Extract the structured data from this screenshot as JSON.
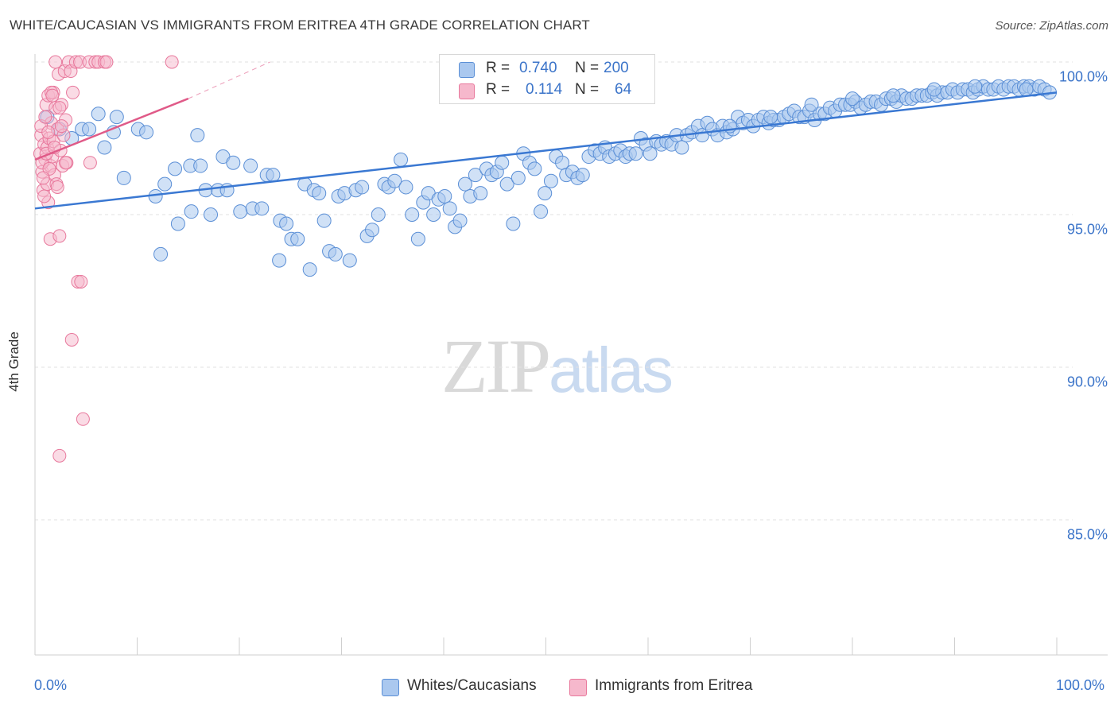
{
  "title": "WHITE/CAUCASIAN VS IMMIGRANTS FROM ERITREA 4TH GRADE CORRELATION CHART",
  "source": "Source: ZipAtlas.com",
  "watermark": {
    "zip": "ZIP",
    "atlas": "atlas"
  },
  "colors": {
    "blue_fill": "#aac8ef",
    "blue_stroke": "#5b8fd6",
    "blue_line": "#3a78d2",
    "pink_fill": "#f6b8cc",
    "pink_stroke": "#e8789c",
    "pink_line": "#e05a88",
    "grid": "#e2e2e2",
    "tick_text": "#3b74c9"
  },
  "legend": {
    "rows": [
      {
        "r_label": "R =",
        "r_value": "0.740",
        "n_label": "N =",
        "n_value": "200"
      },
      {
        "r_label": "R =",
        "r_value": "0.114",
        "n_label": "N =",
        "n_value": "64"
      }
    ]
  },
  "bottom_legend": {
    "blue": "Whites/Caucasians",
    "pink": "Immigrants from Eritrea"
  },
  "chart_data": {
    "type": "scatter",
    "title": "WHITE/CAUCASIAN VS IMMIGRANTS FROM ERITREA 4TH GRADE CORRELATION CHART",
    "xlabel": "",
    "ylabel": "4th Grade",
    "xlim": [
      0,
      100
    ],
    "ylim": [
      80.5,
      101
    ],
    "x_tick_labels": [
      "0.0%",
      "100.0%"
    ],
    "y_ticks": [
      85,
      90,
      95,
      100
    ],
    "y_tick_labels": [
      "85.0%",
      "90.0%",
      "95.0%",
      "100.0%"
    ],
    "grid": true,
    "series": [
      {
        "name": "Whites/Caucasians",
        "r": 0.74,
        "n": 200,
        "trend": {
          "x": [
            0,
            100
          ],
          "y": [
            95.2,
            99.0
          ]
        },
        "points": [
          [
            1.2,
            98.2
          ],
          [
            2.4,
            97.8
          ],
          [
            3.6,
            97.5
          ],
          [
            4.6,
            97.8
          ],
          [
            5.3,
            97.8
          ],
          [
            6.2,
            98.3
          ],
          [
            6.8,
            97.2
          ],
          [
            7.7,
            97.7
          ],
          [
            8.0,
            98.2
          ],
          [
            8.7,
            96.2
          ],
          [
            10.1,
            97.8
          ],
          [
            10.9,
            97.7
          ],
          [
            11.8,
            95.6
          ],
          [
            12.3,
            93.7
          ],
          [
            12.7,
            96.0
          ],
          [
            13.7,
            96.5
          ],
          [
            14.0,
            94.7
          ],
          [
            15.2,
            96.6
          ],
          [
            15.3,
            95.1
          ],
          [
            15.9,
            97.6
          ],
          [
            16.2,
            96.6
          ],
          [
            16.7,
            95.8
          ],
          [
            17.2,
            95.0
          ],
          [
            17.9,
            95.8
          ],
          [
            18.4,
            96.9
          ],
          [
            18.8,
            95.8
          ],
          [
            19.4,
            96.7
          ],
          [
            20.1,
            95.1
          ],
          [
            21.1,
            96.6
          ],
          [
            21.3,
            95.2
          ],
          [
            22.2,
            95.2
          ],
          [
            22.7,
            96.3
          ],
          [
            23.3,
            96.3
          ],
          [
            23.9,
            93.5
          ],
          [
            24.0,
            94.8
          ],
          [
            24.6,
            94.7
          ],
          [
            25.1,
            94.2
          ],
          [
            25.7,
            94.2
          ],
          [
            26.4,
            96.0
          ],
          [
            26.9,
            93.2
          ],
          [
            27.3,
            95.8
          ],
          [
            27.8,
            95.7
          ],
          [
            28.3,
            94.8
          ],
          [
            28.8,
            93.8
          ],
          [
            29.4,
            93.7
          ],
          [
            29.7,
            95.6
          ],
          [
            30.3,
            95.7
          ],
          [
            30.8,
            93.5
          ],
          [
            31.4,
            95.8
          ],
          [
            32.0,
            95.9
          ],
          [
            32.5,
            94.3
          ],
          [
            33.0,
            94.5
          ],
          [
            33.6,
            95.0
          ],
          [
            34.2,
            96.0
          ],
          [
            34.6,
            95.9
          ],
          [
            35.2,
            96.1
          ],
          [
            35.8,
            96.8
          ],
          [
            36.3,
            95.9
          ],
          [
            36.9,
            95.0
          ],
          [
            37.5,
            94.2
          ],
          [
            38.0,
            95.4
          ],
          [
            38.5,
            95.7
          ],
          [
            39.0,
            95.0
          ],
          [
            39.5,
            95.5
          ],
          [
            40.1,
            95.6
          ],
          [
            40.6,
            95.2
          ],
          [
            41.1,
            94.6
          ],
          [
            41.6,
            94.8
          ],
          [
            42.1,
            96.0
          ],
          [
            42.6,
            95.6
          ],
          [
            43.1,
            96.3
          ],
          [
            43.6,
            95.7
          ],
          [
            44.2,
            96.5
          ],
          [
            44.7,
            96.3
          ],
          [
            45.2,
            96.4
          ],
          [
            45.7,
            96.7
          ],
          [
            46.2,
            96.0
          ],
          [
            46.8,
            94.7
          ],
          [
            47.3,
            96.2
          ],
          [
            47.8,
            97.0
          ],
          [
            48.4,
            96.7
          ],
          [
            48.9,
            96.5
          ],
          [
            49.5,
            95.1
          ],
          [
            49.9,
            95.7
          ],
          [
            50.5,
            96.1
          ],
          [
            51.0,
            96.9
          ],
          [
            51.6,
            96.7
          ],
          [
            52.0,
            96.3
          ],
          [
            52.6,
            96.4
          ],
          [
            53.1,
            96.2
          ],
          [
            53.6,
            96.3
          ],
          [
            54.2,
            96.9
          ],
          [
            54.8,
            97.1
          ],
          [
            55.3,
            97.0
          ],
          [
            55.8,
            97.2
          ],
          [
            56.2,
            96.9
          ],
          [
            56.8,
            97.0
          ],
          [
            57.3,
            97.1
          ],
          [
            57.8,
            96.9
          ],
          [
            58.2,
            97.0
          ],
          [
            58.8,
            97.0
          ],
          [
            59.3,
            97.5
          ],
          [
            59.8,
            97.3
          ],
          [
            60.2,
            97.0
          ],
          [
            60.8,
            97.4
          ],
          [
            61.3,
            97.3
          ],
          [
            61.8,
            97.4
          ],
          [
            62.3,
            97.3
          ],
          [
            62.8,
            97.6
          ],
          [
            63.3,
            97.2
          ],
          [
            63.8,
            97.6
          ],
          [
            64.3,
            97.7
          ],
          [
            64.9,
            97.9
          ],
          [
            65.3,
            97.6
          ],
          [
            65.8,
            98.0
          ],
          [
            66.3,
            97.8
          ],
          [
            66.8,
            97.6
          ],
          [
            67.3,
            97.9
          ],
          [
            67.7,
            97.7
          ],
          [
            68.3,
            97.8
          ],
          [
            68.8,
            98.2
          ],
          [
            69.3,
            98.0
          ],
          [
            69.8,
            98.1
          ],
          [
            70.3,
            97.9
          ],
          [
            70.8,
            98.1
          ],
          [
            71.3,
            98.2
          ],
          [
            71.8,
            98.0
          ],
          [
            72.3,
            98.1
          ],
          [
            72.8,
            98.1
          ],
          [
            73.3,
            98.2
          ],
          [
            73.8,
            98.3
          ],
          [
            74.3,
            98.4
          ],
          [
            74.8,
            98.2
          ],
          [
            75.3,
            98.2
          ],
          [
            75.8,
            98.4
          ],
          [
            76.3,
            98.1
          ],
          [
            76.8,
            98.3
          ],
          [
            77.3,
            98.3
          ],
          [
            77.8,
            98.5
          ],
          [
            78.3,
            98.4
          ],
          [
            78.8,
            98.6
          ],
          [
            79.3,
            98.6
          ],
          [
            79.8,
            98.6
          ],
          [
            80.3,
            98.7
          ],
          [
            80.8,
            98.5
          ],
          [
            81.3,
            98.6
          ],
          [
            81.8,
            98.7
          ],
          [
            82.3,
            98.7
          ],
          [
            82.8,
            98.6
          ],
          [
            83.3,
            98.8
          ],
          [
            83.8,
            98.8
          ],
          [
            84.3,
            98.7
          ],
          [
            84.8,
            98.9
          ],
          [
            85.3,
            98.8
          ],
          [
            85.8,
            98.8
          ],
          [
            86.3,
            98.9
          ],
          [
            86.8,
            98.9
          ],
          [
            87.3,
            98.9
          ],
          [
            87.8,
            99.0
          ],
          [
            88.3,
            98.9
          ],
          [
            88.8,
            99.0
          ],
          [
            89.3,
            99.0
          ],
          [
            89.8,
            99.1
          ],
          [
            90.3,
            99.0
          ],
          [
            90.8,
            99.1
          ],
          [
            91.3,
            99.1
          ],
          [
            91.8,
            99.0
          ],
          [
            92.3,
            99.1
          ],
          [
            92.8,
            99.2
          ],
          [
            93.3,
            99.1
          ],
          [
            93.8,
            99.1
          ],
          [
            94.3,
            99.2
          ],
          [
            94.8,
            99.1
          ],
          [
            95.3,
            99.2
          ],
          [
            95.8,
            99.2
          ],
          [
            96.3,
            99.1
          ],
          [
            96.8,
            99.2
          ],
          [
            97.3,
            99.2
          ],
          [
            97.8,
            99.1
          ],
          [
            98.3,
            99.2
          ],
          [
            98.8,
            99.1
          ],
          [
            99.3,
            99.0
          ],
          [
            97.0,
            99.1
          ],
          [
            92.0,
            99.2
          ],
          [
            88.0,
            99.1
          ],
          [
            84.0,
            98.9
          ],
          [
            80.0,
            98.8
          ],
          [
            76.0,
            98.6
          ],
          [
            72.0,
            98.2
          ],
          [
            68.0,
            97.9
          ]
        ]
      },
      {
        "name": "Immigrants from Eritrea",
        "r": 0.114,
        "n": 64,
        "trend": {
          "x": [
            0,
            15
          ],
          "y": [
            96.8,
            98.8
          ]
        },
        "trend_dashed": {
          "x": [
            15,
            23
          ],
          "y": [
            98.8,
            100.0
          ]
        },
        "points": [
          [
            0.5,
            97.0
          ],
          [
            0.6,
            97.6
          ],
          [
            0.7,
            96.4
          ],
          [
            0.8,
            95.8
          ],
          [
            0.9,
            97.3
          ],
          [
            1.0,
            96.8
          ],
          [
            1.1,
            98.6
          ],
          [
            1.2,
            97.2
          ],
          [
            1.2,
            96.0
          ],
          [
            1.3,
            95.4
          ],
          [
            1.3,
            98.9
          ],
          [
            1.4,
            97.5
          ],
          [
            1.5,
            96.6
          ],
          [
            1.5,
            94.2
          ],
          [
            1.6,
            98.0
          ],
          [
            1.7,
            96.9
          ],
          [
            1.8,
            97.4
          ],
          [
            1.8,
            99.0
          ],
          [
            1.9,
            96.3
          ],
          [
            2.0,
            98.5
          ],
          [
            2.0,
            100.0
          ],
          [
            2.1,
            96.0
          ],
          [
            2.2,
            97.8
          ],
          [
            2.3,
            99.6
          ],
          [
            2.4,
            94.3
          ],
          [
            2.5,
            97.1
          ],
          [
            2.6,
            98.6
          ],
          [
            2.7,
            96.6
          ],
          [
            2.8,
            97.6
          ],
          [
            2.9,
            99.7
          ],
          [
            3.0,
            98.1
          ],
          [
            3.1,
            96.7
          ],
          [
            0.6,
            97.9
          ],
          [
            0.7,
            96.7
          ],
          [
            0.9,
            95.6
          ],
          [
            1.0,
            98.2
          ],
          [
            1.1,
            97.0
          ],
          [
            1.4,
            96.5
          ],
          [
            1.6,
            99.0
          ],
          [
            1.7,
            98.9
          ],
          [
            1.9,
            97.2
          ],
          [
            2.2,
            95.9
          ],
          [
            2.4,
            98.5
          ],
          [
            2.6,
            97.9
          ],
          [
            3.0,
            96.7
          ],
          [
            3.3,
            100.0
          ],
          [
            3.5,
            99.7
          ],
          [
            3.7,
            99.0
          ],
          [
            4.0,
            100.0
          ],
          [
            4.2,
            92.8
          ],
          [
            4.5,
            92.8
          ],
          [
            3.6,
            90.9
          ],
          [
            4.4,
            100.0
          ],
          [
            4.7,
            88.3
          ],
          [
            5.3,
            100.0
          ],
          [
            5.4,
            96.7
          ],
          [
            5.9,
            100.0
          ],
          [
            6.2,
            100.0
          ],
          [
            6.8,
            100.0
          ],
          [
            7.0,
            100.0
          ],
          [
            13.4,
            100.0
          ],
          [
            2.4,
            87.1
          ],
          [
            0.8,
            96.2
          ],
          [
            1.3,
            97.7
          ]
        ]
      }
    ]
  }
}
